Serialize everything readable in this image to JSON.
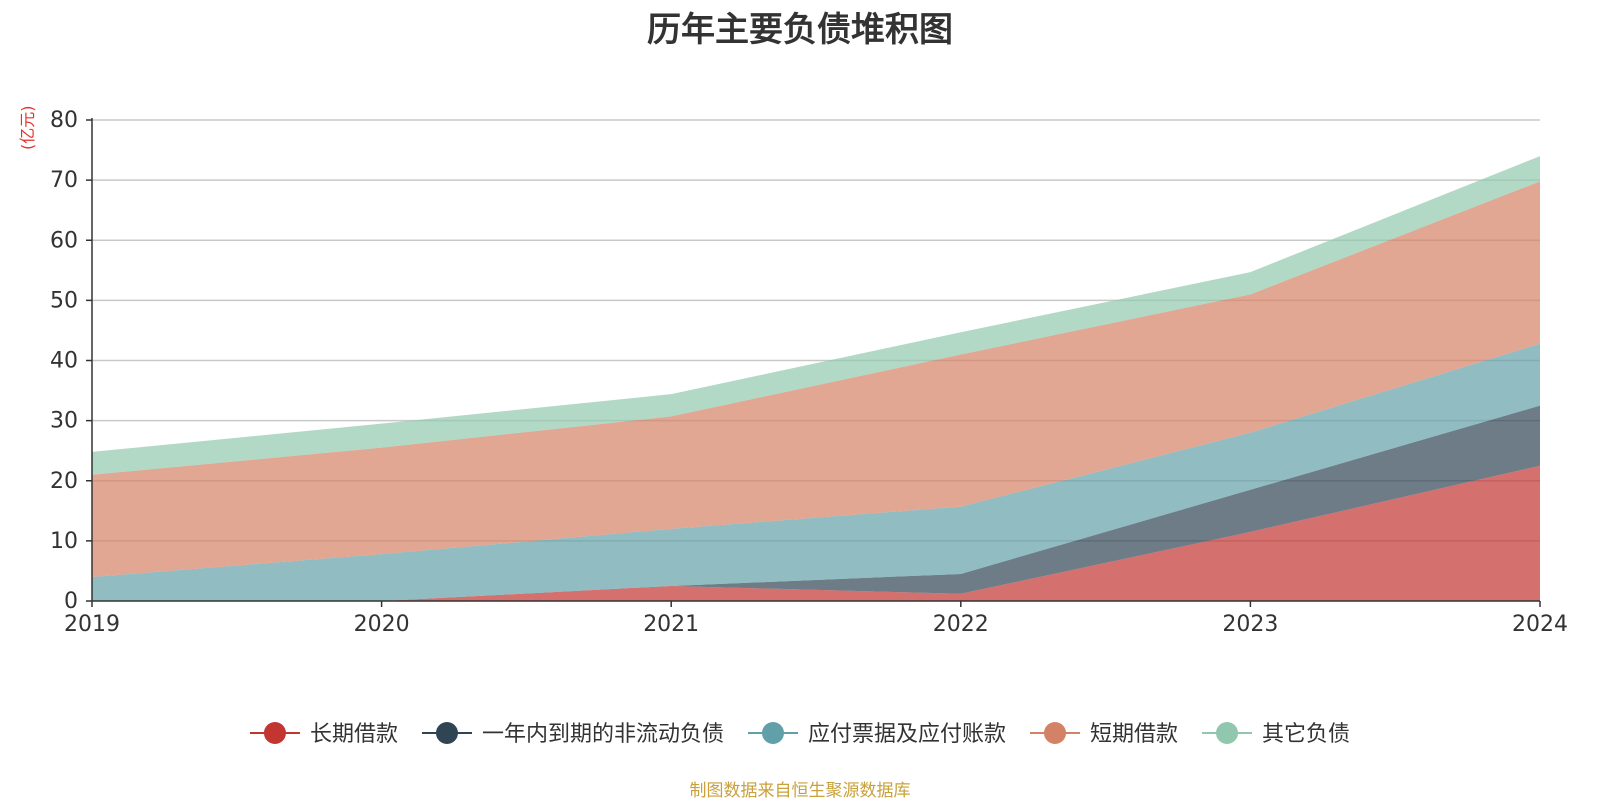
{
  "chart_data": {
    "type": "area",
    "stacked": true,
    "title": "历年主要负债堆积图",
    "unit": "(亿元)",
    "x": [
      "2019",
      "2020",
      "2021",
      "2022",
      "2023",
      "2024"
    ],
    "ylim": [
      0,
      80
    ],
    "yticks": [
      0,
      10,
      20,
      30,
      40,
      50,
      60,
      70,
      80
    ],
    "grid": true,
    "legend_position": "bottom",
    "series": [
      {
        "name": "长期借款",
        "color": "#c23531",
        "values": [
          0,
          0,
          2.5,
          1.2,
          11.5,
          22.5
        ]
      },
      {
        "name": "一年内到期的非流动负债",
        "color": "#2f4554",
        "values": [
          0,
          0,
          0,
          3.3,
          7,
          10
        ]
      },
      {
        "name": "应付票据及应付账款",
        "color": "#61a0a8",
        "values": [
          4,
          7.8,
          9.5,
          11.2,
          9.5,
          10.3
        ]
      },
      {
        "name": "短期借款",
        "color": "#d48265",
        "values": [
          17,
          17.7,
          18.7,
          25.3,
          23,
          27
        ]
      },
      {
        "name": "其它负债",
        "color": "#91c7ae",
        "values": [
          3.8,
          4,
          3.7,
          3.7,
          3.7,
          4.2
        ]
      }
    ]
  },
  "source_note": "制图数据来自恒生聚源数据库"
}
